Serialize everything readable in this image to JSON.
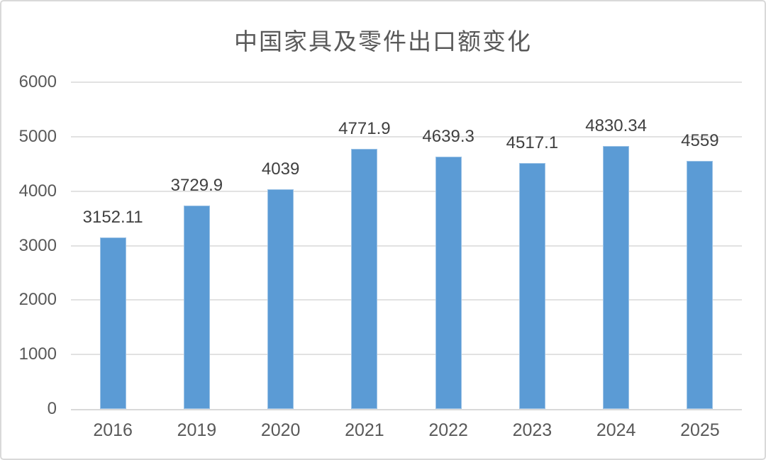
{
  "chart_data": {
    "type": "bar",
    "title": "中国家具及零件出口额变化",
    "categories": [
      "2016",
      "2019",
      "2020",
      "2021",
      "2022",
      "2023",
      "2024",
      "2025"
    ],
    "values": [
      3152.11,
      3729.9,
      4039,
      4771.9,
      4639.3,
      4517.1,
      4830.34,
      4559
    ],
    "data_labels": [
      "3152.11",
      "3729.9",
      "4039",
      "4771.9",
      "4639.3",
      "4517.1",
      "4830.34",
      "4559"
    ],
    "xlabel": "",
    "ylabel": "",
    "ylim": [
      0,
      6000
    ],
    "yticks": [
      0,
      1000,
      2000,
      3000,
      4000,
      5000,
      6000
    ],
    "grid": true,
    "legend": false,
    "colors": {
      "bar_fill": "#5B9BD5",
      "bar_edge": "#9DC3E6",
      "gridline": "#E2E2E2",
      "axis_line": "#D9D9D9",
      "axis_text": "#595959",
      "data_label_text": "#404040",
      "title_text": "#595959",
      "frame_border": "#D9D9D9",
      "background": "#FFFFFF"
    }
  }
}
